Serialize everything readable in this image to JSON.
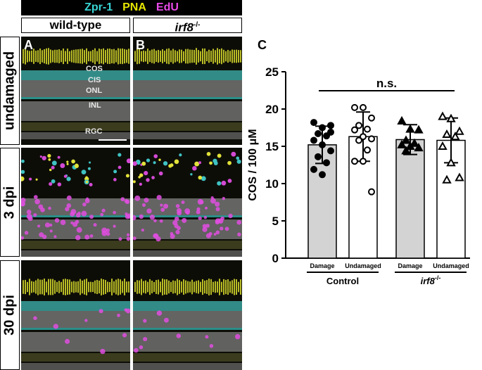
{
  "stain_labels": [
    {
      "text": "Zpr-1",
      "color": "#39d4d4"
    },
    {
      "text": "PNA",
      "color": "#e6e600"
    },
    {
      "text": "EdU",
      "color": "#e84ae8"
    }
  ],
  "genotypes": {
    "wild_type": "wild-type",
    "irf8_base": "irf8",
    "irf8_sup": "-/-"
  },
  "rows": {
    "undamaged": "undamaged",
    "dpi3": "3 dpi",
    "dpi30": "30 dpi"
  },
  "panel_letters": {
    "a": "A",
    "b": "B",
    "c": "C"
  },
  "layers": {
    "cos": "COS",
    "cis": "CIS",
    "onl": "ONL",
    "inl": "INL",
    "rgc": "RGC"
  },
  "chart_data": {
    "type": "bar",
    "ylabel": "COS / 100 μM",
    "ylim": [
      0,
      25
    ],
    "yticks": [
      "0",
      "5",
      "10",
      "15",
      "20",
      "25"
    ],
    "significance": "n.s.",
    "categories": [
      "Damage",
      "Undamaged",
      "Damage",
      "Undamaged"
    ],
    "groups": [
      {
        "label": "Control",
        "sup": ""
      },
      {
        "label": "irf8",
        "sup": "-/-"
      }
    ],
    "bar_colors": [
      "#d3d3d3",
      "#ffffff",
      "#d3d3d3",
      "#ffffff"
    ],
    "marker_types": [
      "filled-circle",
      "open-circle",
      "filled-triangle",
      "open-triangle"
    ],
    "values": [
      15.2,
      16.3,
      15.9,
      15.8
    ],
    "errors": [
      2.5,
      3.3,
      2.0,
      3.0
    ],
    "points": [
      [
        18.2,
        17.5,
        16.9,
        16.7,
        16.4,
        15.8,
        15.2,
        14.4,
        13.6,
        12.8,
        11.9,
        11.2,
        17.8
      ],
      [
        20.2,
        20.2,
        18.8,
        17.8,
        17.3,
        17.2,
        16.3,
        16.0,
        15.8,
        14.5,
        13.0,
        13.0,
        8.9
      ],
      [
        18.4,
        17.3,
        17.2,
        15.8,
        15.4,
        15.2,
        15.0,
        14.8,
        14.4
      ],
      [
        19.0,
        18.7,
        17.0,
        16.6,
        16.3,
        15.0,
        12.8,
        10.8,
        10.5
      ]
    ]
  }
}
